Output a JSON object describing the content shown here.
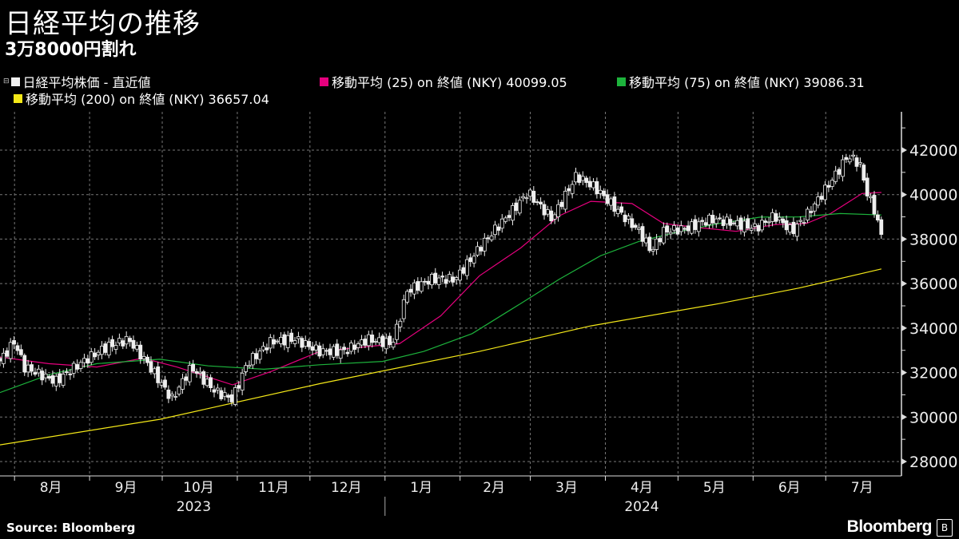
{
  "title": "日経平均の推移",
  "subtitle": "3万8000円割れ",
  "legend": [
    {
      "label": "日経平均株価 - 直近値",
      "color": "#f0f0f0"
    },
    {
      "label": "移動平均 (25)  on 終値 (NKY) 40099.05",
      "color": "#e6007e"
    },
    {
      "label": "移動平均 (75)  on 終値 (NKY) 39086.31",
      "color": "#1db33c"
    },
    {
      "label": "移動平均 (200)  on 終値 (NKY) 36657.04",
      "color": "#f4e818"
    }
  ],
  "source": "Source: Bloomberg",
  "logo": "Bloomberg",
  "chart_data": {
    "type": "candlestick+line",
    "x_unit": "days since 2023-07-26",
    "ylim": [
      27000,
      43500
    ],
    "yticks": [
      28000,
      30000,
      32000,
      34000,
      36000,
      38000,
      40000,
      42000
    ],
    "ytick_labels": [
      "28000",
      "30000",
      "32000",
      "34000",
      "36000",
      "38000",
      "40000",
      "42000"
    ],
    "xlim": [
      0,
      372
    ],
    "month_boundaries": [
      6,
      37,
      67,
      98,
      128,
      159,
      190,
      219,
      250,
      280,
      311,
      341
    ],
    "months": [
      {
        "label": "8月",
        "day": 21
      },
      {
        "label": "9月",
        "day": 52
      },
      {
        "label": "10月",
        "day": 82
      },
      {
        "label": "11月",
        "day": 113
      },
      {
        "label": "12月",
        "day": 143
      },
      {
        "label": "1月",
        "day": 174
      },
      {
        "label": "2月",
        "day": 204
      },
      {
        "label": "3月",
        "day": 234
      },
      {
        "label": "4月",
        "day": 265
      },
      {
        "label": "5月",
        "day": 295
      },
      {
        "label": "6月",
        "day": 326
      },
      {
        "label": "7月",
        "day": 356
      }
    ],
    "years": [
      {
        "label": "2023",
        "day": 80
      },
      {
        "label": "2024",
        "day": 265
      }
    ],
    "year_separator_day": 159,
    "close": [
      [
        0,
        32520
      ],
      [
        6,
        33400
      ],
      [
        10,
        32250
      ],
      [
        23,
        31600
      ],
      [
        33,
        32400
      ],
      [
        43,
        33100
      ],
      [
        53,
        33500
      ],
      [
        61,
        32400
      ],
      [
        71,
        30800
      ],
      [
        79,
        32250
      ],
      [
        89,
        31150
      ],
      [
        96,
        30800
      ],
      [
        102,
        32400
      ],
      [
        112,
        33400
      ],
      [
        122,
        33500
      ],
      [
        132,
        32950
      ],
      [
        142,
        32950
      ],
      [
        152,
        33500
      ],
      [
        162,
        33300
      ],
      [
        165,
        34400
      ],
      [
        168,
        35650
      ],
      [
        178,
        36200
      ],
      [
        188,
        36200
      ],
      [
        198,
        37600
      ],
      [
        205,
        38500
      ],
      [
        211,
        39200
      ],
      [
        218,
        40100
      ],
      [
        228,
        38900
      ],
      [
        238,
        40850
      ],
      [
        246,
        40300
      ],
      [
        254,
        39400
      ],
      [
        264,
        38350
      ],
      [
        269,
        37450
      ],
      [
        274,
        38350
      ],
      [
        284,
        38500
      ],
      [
        294,
        38900
      ],
      [
        304,
        38700
      ],
      [
        312,
        38500
      ],
      [
        320,
        39050
      ],
      [
        327,
        38350
      ],
      [
        333,
        39050
      ],
      [
        340,
        40100
      ],
      [
        347,
        41200
      ],
      [
        350,
        41750
      ],
      [
        355,
        41400
      ],
      [
        358,
        40100
      ],
      [
        361,
        39350
      ],
      [
        364,
        38150
      ]
    ],
    "series": [
      {
        "name": "MA25",
        "color": "#e6007e",
        "points": [
          [
            0,
            32700
          ],
          [
            20,
            32400
          ],
          [
            40,
            32250
          ],
          [
            59,
            32650
          ],
          [
            73,
            32250
          ],
          [
            96,
            31450
          ],
          [
            112,
            32050
          ],
          [
            132,
            32950
          ],
          [
            155,
            33200
          ],
          [
            165,
            33300
          ],
          [
            182,
            34550
          ],
          [
            198,
            36350
          ],
          [
            215,
            37600
          ],
          [
            231,
            39050
          ],
          [
            244,
            39700
          ],
          [
            261,
            39600
          ],
          [
            274,
            38700
          ],
          [
            290,
            38500
          ],
          [
            304,
            38350
          ],
          [
            320,
            38650
          ],
          [
            333,
            38700
          ],
          [
            343,
            39150
          ],
          [
            356,
            40050
          ],
          [
            364,
            40099
          ]
        ]
      },
      {
        "name": "MA75",
        "color": "#1db33c",
        "points": [
          [
            0,
            31100
          ],
          [
            20,
            31900
          ],
          [
            40,
            32400
          ],
          [
            66,
            32600
          ],
          [
            86,
            32300
          ],
          [
            109,
            32150
          ],
          [
            132,
            32350
          ],
          [
            158,
            32500
          ],
          [
            175,
            32950
          ],
          [
            195,
            33750
          ],
          [
            215,
            35100
          ],
          [
            231,
            36200
          ],
          [
            248,
            37250
          ],
          [
            264,
            37900
          ],
          [
            281,
            38350
          ],
          [
            297,
            38700
          ],
          [
            314,
            38990
          ],
          [
            330,
            39000
          ],
          [
            347,
            39150
          ],
          [
            364,
            39086
          ]
        ]
      },
      {
        "name": "MA200",
        "color": "#f4e818",
        "points": [
          [
            0,
            28750
          ],
          [
            66,
            29900
          ],
          [
            132,
            31500
          ],
          [
            198,
            32950
          ],
          [
            244,
            34100
          ],
          [
            297,
            35100
          ],
          [
            330,
            35800
          ],
          [
            364,
            36657
          ]
        ]
      }
    ]
  }
}
